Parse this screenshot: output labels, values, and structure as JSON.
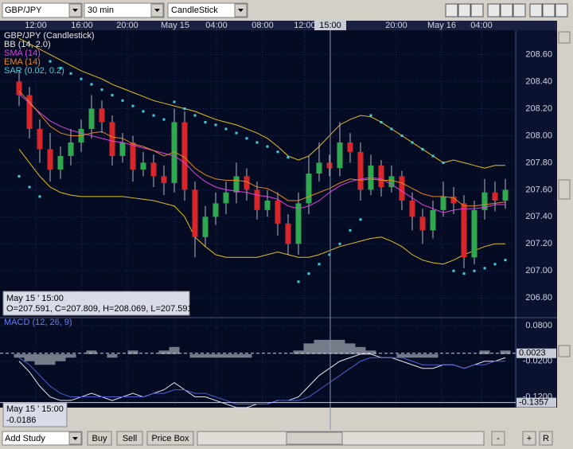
{
  "toolbar": {
    "symbol": "GBP/JPY",
    "interval": "30 min",
    "chart_type": "CandleStick"
  },
  "time_axis": [
    "12:00",
    "16:00",
    "20:00",
    "May 15",
    "04:00",
    "08:00",
    "12:00",
    "15:00",
    "20:00",
    "May 16",
    "04:00"
  ],
  "chart_data": [
    {
      "type": "candlestick",
      "title": "GBP/JPY (Candlestick)",
      "up_color": "#2fa84f",
      "down_color": "#d8262a",
      "open": [
        208.4,
        208.3,
        208.05,
        207.9,
        207.75,
        207.85,
        207.95,
        208.05,
        208.2,
        208.1,
        207.85,
        207.95,
        207.75,
        207.8,
        207.7,
        207.65,
        208.1,
        207.6,
        207.25,
        207.4,
        207.5,
        207.58,
        207.7,
        207.6,
        207.45,
        207.52,
        207.35,
        207.2,
        207.5,
        207.72,
        207.8,
        207.76,
        207.95,
        207.88,
        207.6,
        207.78,
        207.62,
        207.7,
        207.52,
        207.4,
        207.3,
        207.45,
        207.55,
        207.5,
        207.1,
        207.45,
        207.58,
        207.52
      ],
      "high": [
        208.48,
        208.36,
        208.12,
        208.02,
        207.92,
        208.05,
        208.12,
        208.3,
        208.26,
        208.15,
        208.02,
        208.0,
        207.88,
        207.86,
        207.78,
        208.2,
        208.18,
        207.66,
        207.48,
        207.58,
        207.66,
        207.8,
        207.76,
        207.66,
        207.6,
        207.58,
        207.42,
        207.58,
        207.85,
        207.95,
        207.86,
        208.1,
        208.02,
        207.95,
        207.86,
        207.82,
        207.78,
        207.74,
        207.58,
        207.46,
        207.52,
        207.66,
        207.62,
        207.56,
        207.52,
        207.68,
        207.66,
        207.68
      ],
      "low": [
        208.22,
        207.98,
        207.8,
        207.66,
        207.68,
        207.78,
        207.88,
        207.98,
        208.02,
        207.78,
        207.8,
        207.66,
        207.7,
        207.62,
        207.56,
        207.58,
        207.52,
        207.1,
        207.18,
        207.34,
        207.42,
        207.5,
        207.52,
        207.38,
        207.4,
        207.26,
        207.12,
        207.12,
        207.42,
        207.66,
        207.7,
        207.7,
        207.8,
        207.52,
        207.56,
        207.55,
        207.58,
        207.45,
        207.3,
        207.2,
        207.24,
        207.4,
        207.42,
        207.02,
        207.05,
        207.38,
        207.44,
        207.46
      ],
      "close": [
        208.3,
        208.05,
        207.9,
        207.75,
        207.85,
        207.95,
        208.05,
        208.2,
        208.1,
        207.85,
        207.95,
        207.75,
        207.8,
        207.7,
        207.65,
        208.1,
        207.6,
        207.25,
        207.4,
        207.5,
        207.58,
        207.7,
        207.6,
        207.45,
        207.52,
        207.35,
        207.2,
        207.5,
        207.72,
        207.8,
        207.76,
        207.95,
        207.88,
        207.6,
        207.78,
        207.62,
        207.7,
        207.52,
        207.4,
        207.3,
        207.45,
        207.55,
        207.5,
        207.1,
        207.45,
        207.58,
        207.52,
        207.6
      ],
      "ylim": [
        206.66,
        208.78
      ],
      "yticks": [
        {
          "value": 208.6,
          "label": "208.60"
        },
        {
          "value": 208.4,
          "label": "208.40"
        },
        {
          "value": 208.2,
          "label": "208.20"
        },
        {
          "value": 208,
          "label": "208.00"
        },
        {
          "value": 207.8,
          "label": "207.80"
        },
        {
          "value": 207.6,
          "label": "207.60"
        },
        {
          "value": 207.4,
          "label": "207.40"
        },
        {
          "value": 207.2,
          "label": "207.20"
        },
        {
          "value": 207,
          "label": "207.00"
        },
        {
          "value": 206.8,
          "label": "206.80"
        }
      ],
      "grid": true,
      "bollinger": {
        "name": "BB (14, 2.0)",
        "color": "#e0c020",
        "upper": [
          208.72,
          208.68,
          208.64,
          208.6,
          208.56,
          208.52,
          208.48,
          208.45,
          208.42,
          208.38,
          208.35,
          208.32,
          208.29,
          208.26,
          208.24,
          208.22,
          208.2,
          208.18,
          208.15,
          208.12,
          208.1,
          208.08,
          208.05,
          208.02,
          207.98,
          207.92,
          207.85,
          207.82,
          207.85,
          207.92,
          208.0,
          208.08,
          208.12,
          208.15,
          208.14,
          208.1,
          208.05,
          208.0,
          207.95,
          207.9,
          207.85,
          207.8,
          207.82,
          207.8,
          207.78,
          207.76,
          207.78,
          207.78
        ],
        "lower": [
          207.9,
          207.8,
          207.7,
          207.62,
          207.58,
          207.56,
          207.55,
          207.55,
          207.55,
          207.55,
          207.55,
          207.54,
          207.53,
          207.52,
          207.5,
          207.48,
          207.4,
          207.25,
          207.18,
          207.12,
          207.1,
          207.1,
          207.1,
          207.1,
          207.12,
          207.14,
          207.12,
          207.1,
          207.1,
          207.12,
          207.15,
          207.18,
          207.2,
          207.22,
          207.24,
          207.25,
          207.22,
          207.18,
          207.12,
          207.08,
          207.06,
          207.05,
          207.08,
          207.12,
          207.15,
          207.18,
          207.2,
          207.2
        ]
      },
      "series": [
        {
          "name": "SMA (14)",
          "color": "#e040e0",
          "values": [
            208.31,
            208.24,
            208.17,
            208.11,
            208.07,
            208.04,
            208.02,
            208.0,
            207.98,
            207.96,
            207.95,
            207.93,
            207.91,
            207.89,
            207.87,
            207.85,
            207.8,
            207.72,
            207.66,
            207.62,
            207.6,
            207.59,
            207.58,
            207.56,
            207.55,
            207.53,
            207.48,
            207.46,
            207.48,
            207.52,
            207.58,
            207.63,
            207.66,
            207.68,
            207.69,
            207.68,
            207.64,
            207.59,
            207.54,
            207.49,
            207.46,
            207.43,
            207.45,
            207.46,
            207.46,
            207.47,
            207.49,
            207.49
          ]
        },
        {
          "name": "EMA (14)",
          "color": "#e08a20",
          "values": [
            208.33,
            208.25,
            208.16,
            208.07,
            208.02,
            208.0,
            208.0,
            208.02,
            208.03,
            207.99,
            207.98,
            207.94,
            207.92,
            207.89,
            207.85,
            207.88,
            207.84,
            207.76,
            207.71,
            207.68,
            207.67,
            207.67,
            207.66,
            207.62,
            207.61,
            207.57,
            207.52,
            207.52,
            207.55,
            207.58,
            207.61,
            207.65,
            207.68,
            207.67,
            207.68,
            207.67,
            207.67,
            207.65,
            207.61,
            207.57,
            207.55,
            207.55,
            207.54,
            207.48,
            207.48,
            207.49,
            207.5,
            207.51
          ]
        }
      ],
      "sar": {
        "name": "SAR (0.02, 0.2)",
        "color": "#40d0e0",
        "values": [
          207.7,
          207.62,
          207.55,
          208.55,
          208.5,
          208.46,
          208.42,
          208.38,
          208.34,
          208.3,
          208.26,
          208.22,
          208.18,
          208.15,
          208.12,
          208.25,
          208.2,
          208.15,
          208.1,
          208.08,
          208.05,
          208.02,
          207.98,
          207.95,
          207.92,
          207.88,
          207.84,
          206.92,
          206.98,
          207.05,
          207.12,
          207.2,
          207.3,
          207.38,
          208.15,
          208.1,
          208.05,
          208.0,
          207.95,
          207.9,
          207.85,
          207.8,
          207.0,
          206.98,
          207.0,
          207.02,
          207.05,
          207.08
        ]
      },
      "cursor": {
        "date": "May 15 ' 15:00",
        "ohlc": "O=207.591, C=207.809, H=208.069, L=207.591"
      }
    },
    {
      "type": "macd",
      "title": "MACD (12, 26, 9)",
      "title_color": "#6080ff",
      "histogram": {
        "color": "#8a8f9a",
        "values": [
          -0.01,
          -0.02,
          -0.03,
          -0.03,
          -0.02,
          -0.01,
          0,
          0.01,
          0,
          -0.01,
          0,
          0.01,
          0,
          0,
          0.01,
          0.02,
          0,
          -0.01,
          -0.01,
          -0.01,
          -0.01,
          -0.01,
          -0.01,
          0,
          0,
          0,
          0,
          0.01,
          0.03,
          0.04,
          0.04,
          0.04,
          0.03,
          0.02,
          0.01,
          0,
          0,
          -0.01,
          -0.01,
          -0.01,
          -0.01,
          0,
          0,
          0,
          0,
          0.01,
          0,
          0.01
        ]
      },
      "series": [
        {
          "color": "#e8e8f0",
          "values": [
            -0.02,
            -0.05,
            -0.09,
            -0.12,
            -0.13,
            -0.13,
            -0.12,
            -0.11,
            -0.12,
            -0.13,
            -0.12,
            -0.11,
            -0.12,
            -0.11,
            -0.1,
            -0.08,
            -0.1,
            -0.12,
            -0.12,
            -0.13,
            -0.14,
            -0.15,
            -0.15,
            -0.14,
            -0.14,
            -0.13,
            -0.13,
            -0.12,
            -0.09,
            -0.06,
            -0.04,
            -0.02,
            -0.01,
            0,
            0,
            -0.01,
            -0.01,
            -0.02,
            -0.03,
            -0.04,
            -0.04,
            -0.03,
            -0.03,
            -0.04,
            -0.03,
            -0.02,
            -0.02,
            -0.01
          ]
        },
        {
          "color": "#5060d0",
          "values": [
            -0.01,
            -0.03,
            -0.06,
            -0.09,
            -0.11,
            -0.12,
            -0.12,
            -0.12,
            -0.12,
            -0.12,
            -0.12,
            -0.12,
            -0.12,
            -0.11,
            -0.11,
            -0.1,
            -0.1,
            -0.11,
            -0.11,
            -0.12,
            -0.13,
            -0.14,
            -0.14,
            -0.14,
            -0.14,
            -0.13,
            -0.13,
            -0.13,
            -0.12,
            -0.1,
            -0.08,
            -0.06,
            -0.04,
            -0.02,
            -0.01,
            -0.01,
            -0.01,
            -0.01,
            -0.02,
            -0.03,
            -0.03,
            -0.03,
            -0.03,
            -0.04,
            -0.03,
            -0.03,
            -0.02,
            -0.02
          ]
        }
      ],
      "ylim": [
        -0.15,
        0.1
      ],
      "yticks": [
        {
          "value": 0.08,
          "label": "0.0800"
        },
        {
          "value": -0.02,
          "label": "-0.0200"
        },
        {
          "value": -0.12,
          "label": "-0.1200"
        }
      ],
      "last_value": 0.0023,
      "cursor_level": -0.1357,
      "cursor": {
        "date": "May 15 ' 15:00",
        "value": -0.0186
      }
    }
  ],
  "bottom_bar": {
    "study": "Add Study",
    "buttons": [
      "Buy",
      "Sell",
      "Price Box"
    ],
    "zoom": [
      "-",
      "+",
      "R"
    ]
  }
}
